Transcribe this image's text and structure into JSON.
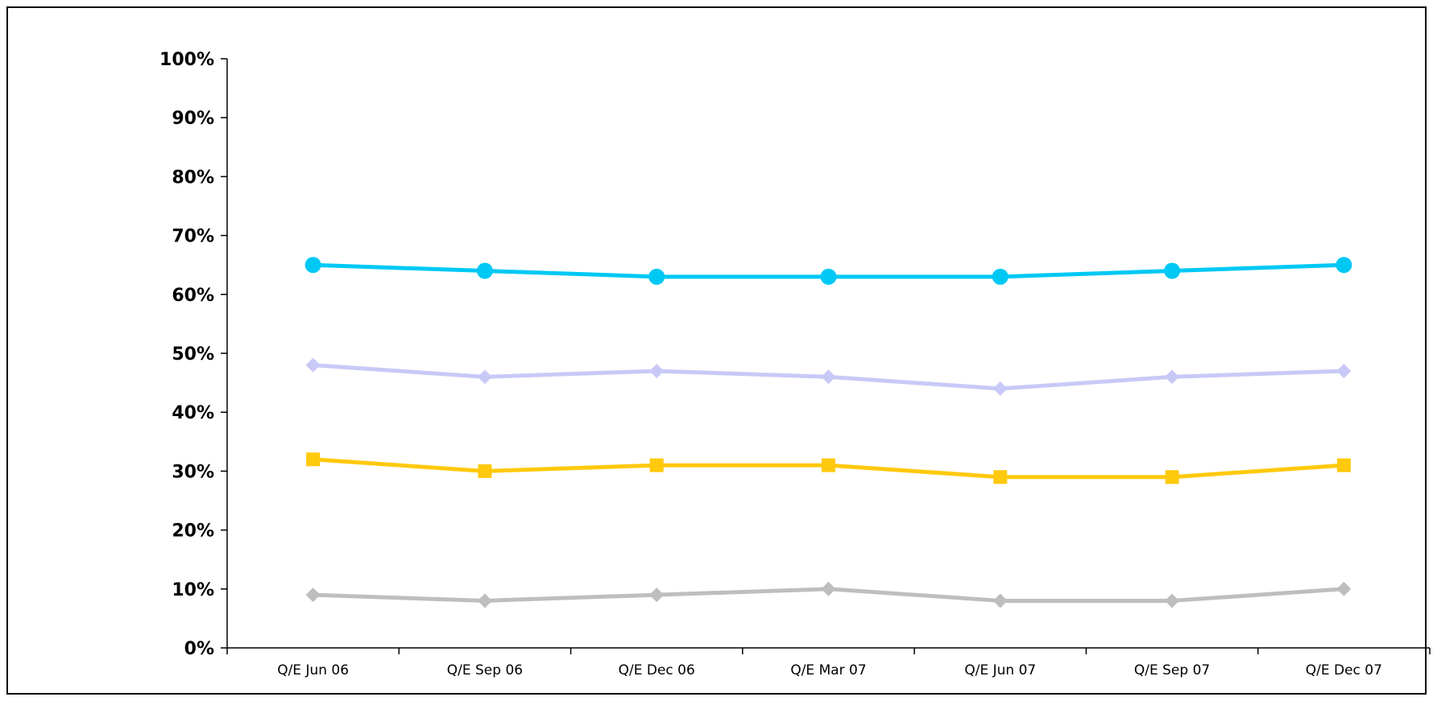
{
  "chart_data": {
    "type": "line",
    "title": "",
    "xlabel": "",
    "ylabel": "",
    "categories": [
      "Q/E Jun 06",
      "Q/E Sep 06",
      "Q/E Dec 06",
      "Q/E Mar 07",
      "Q/E Jun 07",
      "Q/E Sep 07",
      "Q/E Dec 07"
    ],
    "ylim": [
      0,
      100
    ],
    "y_ticks": [
      0,
      10,
      20,
      30,
      40,
      50,
      60,
      70,
      80,
      90,
      100
    ],
    "y_tick_format": "percent",
    "grid": false,
    "legend": "none",
    "series": [
      {
        "color": "#00C8F5",
        "marker": "circle",
        "values": [
          65,
          64,
          63,
          63,
          63,
          64,
          65
        ]
      },
      {
        "color": "#C9C9F7",
        "marker": "diamond",
        "values": [
          48,
          46,
          47,
          46,
          44,
          46,
          47
        ]
      },
      {
        "color": "#FFC90D",
        "marker": "square",
        "values": [
          32,
          30,
          31,
          31,
          29,
          29,
          31
        ]
      },
      {
        "color": "#BEBEBE",
        "marker": "diamond",
        "values": [
          9,
          8,
          9,
          10,
          8,
          8,
          10
        ]
      }
    ]
  }
}
